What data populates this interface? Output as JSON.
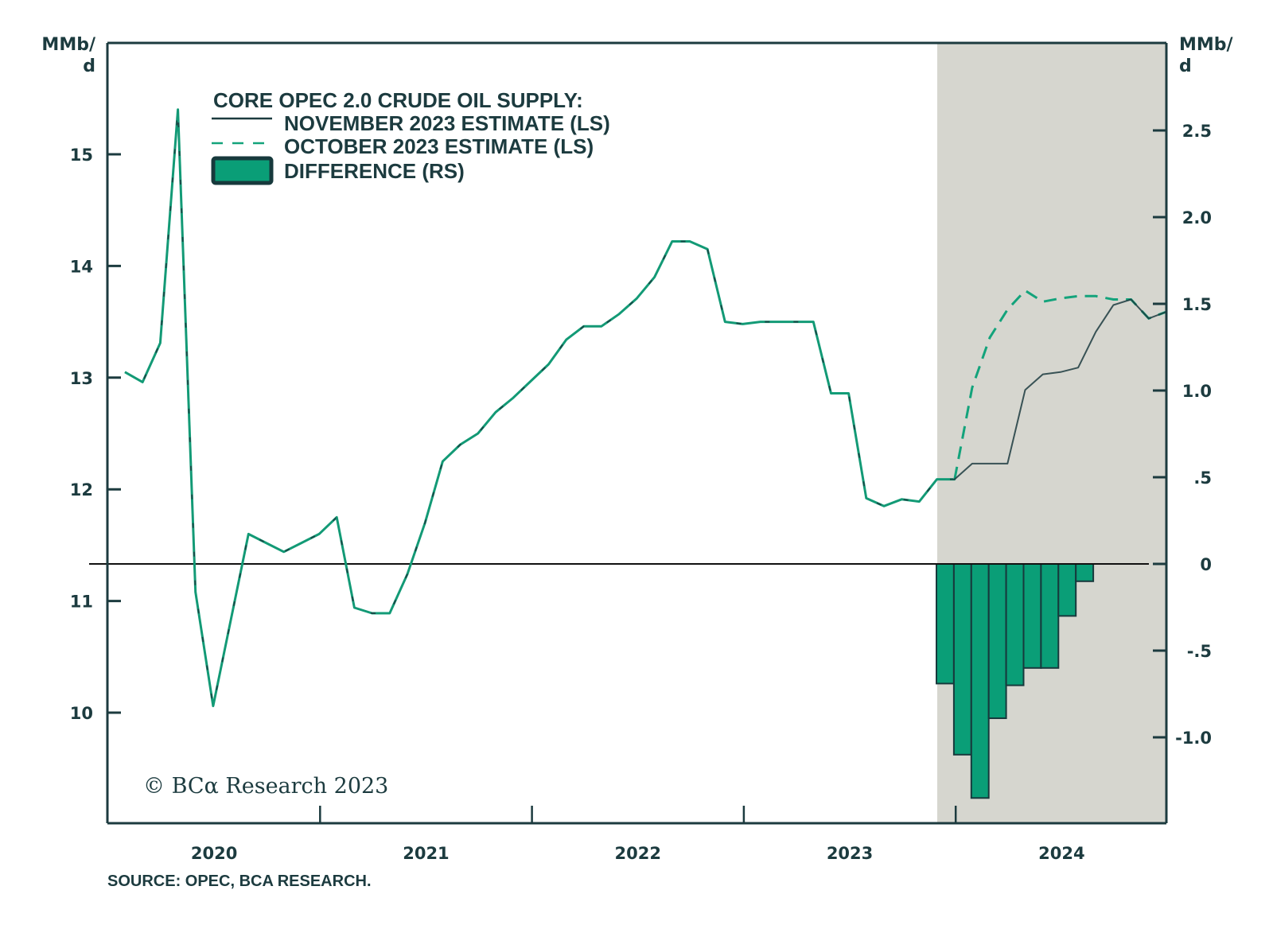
{
  "chart_data": {
    "type": "line",
    "title": "CORE OPEC 2.0 CRUDE OIL SUPPLY:",
    "xlabel": "",
    "ylabel_left": "MMb/d",
    "ylabel_right": "MMb/d",
    "ylabel_left_lines": [
      "MMb/",
      "d"
    ],
    "ylabel_right_lines": [
      "MMb/",
      "d"
    ],
    "ylim_left": [
      9.0,
      15.9
    ],
    "ylim_right": [
      -1.5,
      1.5
    ],
    "yticks_left": [
      10,
      11,
      12,
      13,
      14,
      15
    ],
    "yticks_left_labels": [
      "10",
      "11",
      "12",
      "13",
      "14",
      "15"
    ],
    "yticks_right": [
      -1.0,
      -0.5,
      0,
      0.5,
      1.0,
      1.5,
      2.0,
      2.5
    ],
    "yticks_right_labels": [
      "-1.0",
      "-.5",
      "0",
      ".5",
      "1.0",
      "1.5",
      "2.0",
      "2.5"
    ],
    "x_years": [
      "2020",
      "2021",
      "2022",
      "2023",
      "2024"
    ],
    "x_frequency": "monthly",
    "x_start": "2020-01",
    "x_count": 60,
    "shaded_forecast_start_index": 47,
    "zero_line_right_axis": 0,
    "grid": false,
    "legend_position": "top-left",
    "series": [
      {
        "name": "NOVEMBER 2023 ESTIMATE (LS)",
        "axis": "left",
        "style": "solid",
        "color": "#1c3b3f",
        "values": [
          13.05,
          12.96,
          13.31,
          15.4,
          11.08,
          10.06,
          10.83,
          11.6,
          11.52,
          11.44,
          11.52,
          11.6,
          11.75,
          10.94,
          10.89,
          10.89,
          11.24,
          11.7,
          12.25,
          12.4,
          12.5,
          12.69,
          12.82,
          12.97,
          13.12,
          13.34,
          13.46,
          13.46,
          13.57,
          13.71,
          13.9,
          14.22,
          14.22,
          14.15,
          13.5,
          13.48,
          13.5,
          13.5,
          13.5,
          13.5,
          12.86,
          12.86,
          11.92,
          11.85,
          11.91,
          11.89,
          12.09,
          12.09,
          12.23,
          12.23,
          12.23,
          12.89,
          13.03,
          13.05,
          13.09,
          13.41,
          13.65,
          13.7,
          13.53,
          13.59
        ]
      },
      {
        "name": "OCTOBER 2023 ESTIMATE (LS)",
        "axis": "left",
        "style": "dashed",
        "color": "#13a37b",
        "values": [
          13.05,
          12.96,
          13.31,
          15.4,
          11.08,
          10.06,
          10.83,
          11.6,
          11.52,
          11.44,
          11.52,
          11.6,
          11.75,
          10.94,
          10.89,
          10.89,
          11.24,
          11.7,
          12.25,
          12.4,
          12.5,
          12.69,
          12.82,
          12.97,
          13.12,
          13.34,
          13.46,
          13.46,
          13.57,
          13.71,
          13.9,
          14.22,
          14.22,
          14.15,
          13.5,
          13.48,
          13.5,
          13.5,
          13.5,
          13.5,
          12.86,
          12.86,
          11.92,
          11.85,
          11.91,
          11.89,
          12.09,
          12.09,
          12.91,
          13.36,
          13.61,
          13.78,
          13.68,
          13.71,
          13.73,
          13.73,
          13.7,
          13.7,
          13.53,
          13.59
        ]
      },
      {
        "name": "DIFFERENCE (RS)",
        "axis": "right",
        "type": "bar",
        "color": "#0a9e77",
        "start_index": 47,
        "values": [
          -0.69,
          -1.1,
          -1.35,
          -0.89,
          -0.7,
          -0.6,
          -0.6,
          -0.3,
          -0.1
        ]
      }
    ],
    "annotations": {
      "copyright": "© BCα Research 2023",
      "source": "SOURCE: OPEC, BCA RESEARCH."
    }
  },
  "colors": {
    "axis": "#1c3b3f",
    "shade": "#d6d6cf",
    "accent_green": "#0a9e77",
    "dash_green": "#13a37b"
  }
}
